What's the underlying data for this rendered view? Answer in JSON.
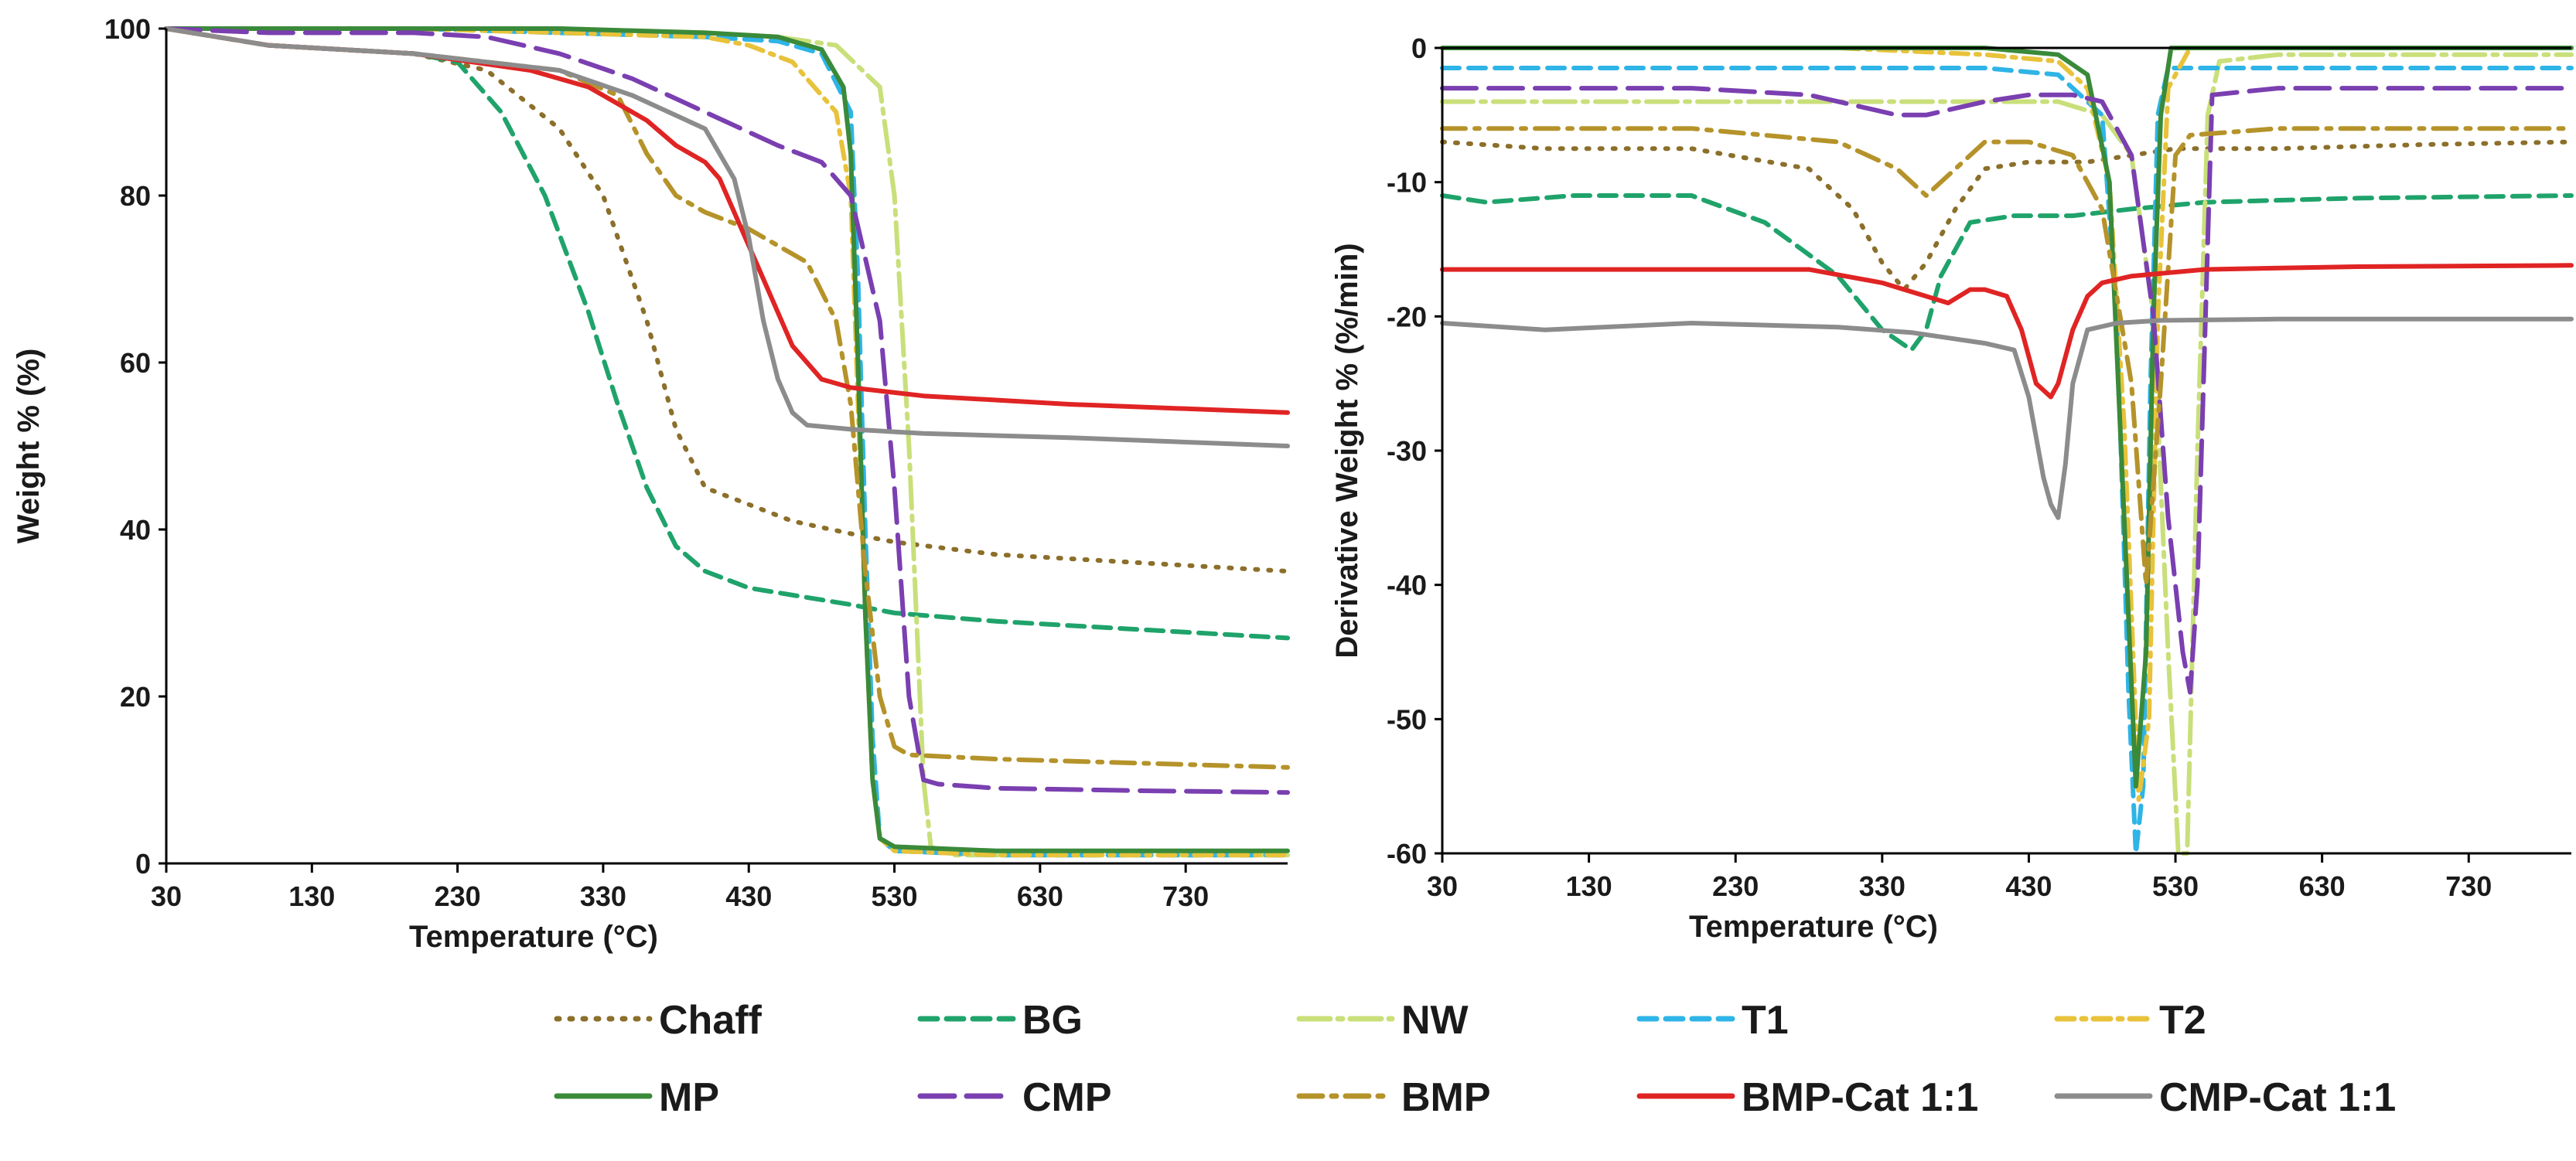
{
  "legend": [
    {
      "name": "Chaff",
      "color": "#8b6f2a",
      "dash": "3,14"
    },
    {
      "name": "BG",
      "color": "#1fa36b",
      "dash": "22,12"
    },
    {
      "name": "NW",
      "color": "#c9df7a",
      "dash": "40,10,6,10"
    },
    {
      "name": "T1",
      "color": "#2eb4e6",
      "dash": "22,12"
    },
    {
      "name": "T2",
      "color": "#e8c23a",
      "dash": "22,10,5,10"
    },
    {
      "name": "MP",
      "color": "#3a8a3a",
      "dash": ""
    },
    {
      "name": "CMP",
      "color": "#7a3fb0",
      "dash": "44,16"
    },
    {
      "name": "BMP",
      "color": "#b5932a",
      "dash": "30,12,6,12"
    },
    {
      "name": "BMP-Cat 1:1",
      "color": "#e02424",
      "dash": ""
    },
    {
      "name": "CMP-Cat 1:1",
      "color": "#8c8c8c",
      "dash": ""
    }
  ],
  "chart_data": [
    {
      "type": "line",
      "title": "",
      "xlabel": "Temperature (°C)",
      "ylabel": "Weight % (%)",
      "xlim": [
        30,
        800
      ],
      "ylim": [
        0,
        100
      ],
      "xticks": [
        30,
        130,
        230,
        330,
        430,
        530,
        630,
        730
      ],
      "yticks": [
        0,
        20,
        40,
        60,
        80,
        100
      ],
      "grid": false,
      "series": [
        {
          "name": "Chaff",
          "x": [
            30,
            100,
            200,
            250,
            300,
            330,
            360,
            380,
            400,
            430,
            460,
            500,
            530,
            600,
            700,
            800
          ],
          "y": [
            100,
            98,
            97,
            95,
            88,
            80,
            65,
            52,
            45,
            43,
            41,
            39.5,
            38.5,
            37,
            36,
            35
          ]
        },
        {
          "name": "BG",
          "x": [
            30,
            100,
            200,
            230,
            260,
            290,
            320,
            340,
            360,
            380,
            400,
            430,
            500,
            530,
            600,
            700,
            800
          ],
          "y": [
            100,
            98,
            97,
            96,
            90,
            80,
            66,
            55,
            45,
            38,
            35,
            33,
            31,
            30,
            29,
            28,
            27
          ]
        },
        {
          "name": "NW",
          "x": [
            30,
            100,
            200,
            300,
            400,
            450,
            490,
            520,
            530,
            540,
            550,
            555,
            570,
            650,
            800
          ],
          "y": [
            100,
            100,
            100,
            100,
            99.5,
            99,
            98,
            93,
            80,
            50,
            10,
            2,
            1,
            1,
            1
          ]
        },
        {
          "name": "T1",
          "x": [
            30,
            100,
            200,
            300,
            400,
            450,
            480,
            500,
            505,
            510,
            515,
            520,
            530,
            600,
            800
          ],
          "y": [
            100,
            100,
            100,
            99.5,
            99,
            98.5,
            97,
            90,
            70,
            40,
            15,
            3,
            1.5,
            1,
            1
          ]
        },
        {
          "name": "T2",
          "x": [
            30,
            100,
            200,
            300,
            400,
            430,
            460,
            490,
            500,
            505,
            510,
            515,
            520,
            530,
            600,
            800
          ],
          "y": [
            100,
            100,
            100,
            99.5,
            99,
            98,
            96,
            90,
            80,
            55,
            30,
            10,
            3,
            1.5,
            1,
            1
          ]
        },
        {
          "name": "MP",
          "x": [
            30,
            100,
            200,
            300,
            400,
            450,
            480,
            495,
            500,
            505,
            510,
            515,
            520,
            530,
            600,
            800
          ],
          "y": [
            100,
            100,
            100,
            100,
            99.5,
            99,
            97.5,
            93,
            85,
            60,
            30,
            10,
            3,
            2,
            1.5,
            1.5
          ]
        },
        {
          "name": "CMP",
          "x": [
            30,
            100,
            200,
            250,
            300,
            350,
            400,
            450,
            480,
            500,
            520,
            530,
            540,
            550,
            560,
            600,
            700,
            800
          ],
          "y": [
            100,
            99.5,
            99.5,
            99,
            97,
            94,
            90,
            86,
            84,
            80,
            65,
            45,
            20,
            10,
            9.5,
            9,
            8.7,
            8.5
          ]
        },
        {
          "name": "BMP",
          "x": [
            30,
            100,
            200,
            300,
            340,
            360,
            380,
            400,
            430,
            470,
            490,
            500,
            510,
            520,
            530,
            540,
            600,
            700,
            800
          ],
          "y": [
            100,
            98,
            97,
            95,
            92,
            85,
            80,
            78,
            76,
            72,
            65,
            55,
            35,
            20,
            14,
            13,
            12.5,
            12,
            11.5
          ]
        },
        {
          "name": "BMP-Cat 1:1",
          "x": [
            30,
            100,
            200,
            280,
            320,
            360,
            380,
            400,
            410,
            420,
            440,
            460,
            480,
            500,
            550,
            650,
            800
          ],
          "y": [
            100,
            98,
            97,
            95,
            93,
            89,
            86,
            84,
            82,
            78,
            70,
            62,
            58,
            57,
            56,
            55,
            54
          ]
        },
        {
          "name": "CMP-Cat 1:1",
          "x": [
            30,
            100,
            200,
            300,
            350,
            400,
            420,
            430,
            440,
            450,
            460,
            470,
            500,
            550,
            650,
            800
          ],
          "y": [
            100,
            98,
            97,
            95,
            92,
            88,
            82,
            75,
            65,
            58,
            54,
            52.5,
            52,
            51.5,
            51,
            50
          ]
        }
      ]
    },
    {
      "type": "line",
      "title": "",
      "xlabel": "Temperature (°C)",
      "ylabel": "Derivative Weight % (%/min)",
      "xlim": [
        30,
        800
      ],
      "ylim": [
        -60,
        0
      ],
      "xticks": [
        30,
        130,
        230,
        330,
        430,
        530,
        630,
        730
      ],
      "yticks": [
        0,
        -10,
        -20,
        -30,
        -40,
        -50,
        -60
      ],
      "grid": false,
      "series": [
        {
          "name": "Chaff",
          "x": [
            30,
            100,
            200,
            280,
            310,
            330,
            345,
            360,
            380,
            400,
            430,
            470,
            500,
            530,
            600,
            700,
            800
          ],
          "y": [
            -7,
            -7.5,
            -7.5,
            -9,
            -12,
            -16,
            -18,
            -16,
            -12,
            -9,
            -8.5,
            -8.5,
            -8,
            -7.5,
            -7.5,
            -7.2,
            -7
          ]
        },
        {
          "name": "BG",
          "x": [
            30,
            60,
            120,
            200,
            250,
            300,
            330,
            350,
            360,
            370,
            390,
            420,
            460,
            500,
            550,
            650,
            800
          ],
          "y": [
            -11,
            -11.5,
            -11,
            -11,
            -13,
            -17,
            -21,
            -22.5,
            -21,
            -17,
            -13,
            -12.5,
            -12.5,
            -12,
            -11.5,
            -11.2,
            -11
          ]
        },
        {
          "name": "NW",
          "x": [
            30,
            100,
            200,
            300,
            400,
            450,
            480,
            500,
            515,
            525,
            532,
            538,
            545,
            552,
            560,
            600,
            800
          ],
          "y": [
            -4,
            -4,
            -4,
            -4,
            -4,
            -4,
            -5,
            -8,
            -20,
            -45,
            -60,
            -60,
            -30,
            -5,
            -1,
            -0.5,
            -0.5
          ]
        },
        {
          "name": "T1",
          "x": [
            30,
            100,
            200,
            300,
            400,
            450,
            480,
            490,
            498,
            503,
            508,
            513,
            518,
            525,
            800
          ],
          "y": [
            -1.5,
            -1.5,
            -1.5,
            -1.5,
            -1.5,
            -2,
            -5,
            -20,
            -48,
            -60,
            -55,
            -25,
            -5,
            -1.5,
            -1.5
          ]
        },
        {
          "name": "T2",
          "x": [
            30,
            100,
            200,
            300,
            400,
            450,
            470,
            485,
            495,
            505,
            512,
            518,
            525,
            540,
            800
          ],
          "y": [
            0,
            0,
            0,
            0,
            -0.5,
            -1,
            -3,
            -10,
            -28,
            -56,
            -50,
            -20,
            -3,
            0,
            0
          ]
        },
        {
          "name": "MP",
          "x": [
            30,
            100,
            200,
            300,
            400,
            450,
            470,
            485,
            495,
            503,
            510,
            515,
            520,
            527,
            540,
            800
          ],
          "y": [
            0,
            0,
            0,
            0,
            0,
            -0.5,
            -2,
            -10,
            -35,
            -55,
            -45,
            -20,
            -5,
            0,
            0,
            0
          ]
        },
        {
          "name": "CMP",
          "x": [
            30,
            100,
            200,
            280,
            320,
            340,
            360,
            380,
            400,
            430,
            460,
            480,
            500,
            515,
            525,
            535,
            540,
            545,
            555,
            600,
            800
          ],
          "y": [
            -3,
            -3,
            -3,
            -3.5,
            -4.5,
            -5,
            -5,
            -4.5,
            -4,
            -3.5,
            -3.5,
            -4,
            -8,
            -20,
            -35,
            -45,
            -48,
            -40,
            -3.5,
            -3,
            -3
          ]
        },
        {
          "name": "BMP",
          "x": [
            30,
            100,
            200,
            300,
            340,
            360,
            380,
            400,
            430,
            460,
            480,
            500,
            510,
            520,
            530,
            540,
            600,
            800
          ],
          "y": [
            -6,
            -6,
            -6,
            -7,
            -9,
            -11,
            -9,
            -7,
            -7,
            -8,
            -12,
            -25,
            -40,
            -25,
            -8,
            -6.5,
            -6,
            -6
          ]
        },
        {
          "name": "BMP-Cat 1:1",
          "x": [
            30,
            100,
            200,
            280,
            330,
            360,
            375,
            390,
            400,
            415,
            425,
            435,
            445,
            450,
            460,
            470,
            480,
            500,
            550,
            650,
            800
          ],
          "y": [
            -16.5,
            -16.5,
            -16.5,
            -16.5,
            -17.5,
            -18.5,
            -19,
            -18,
            -18,
            -18.5,
            -21,
            -25,
            -26,
            -25,
            -21,
            -18.5,
            -17.5,
            -17,
            -16.5,
            -16.3,
            -16.2
          ]
        },
        {
          "name": "CMP-Cat 1:1",
          "x": [
            30,
            100,
            200,
            300,
            350,
            400,
            420,
            430,
            440,
            445,
            450,
            455,
            460,
            470,
            490,
            520,
            600,
            800
          ],
          "y": [
            -20.5,
            -21,
            -20.5,
            -20.8,
            -21.2,
            -22,
            -22.5,
            -26,
            -32,
            -34,
            -35,
            -31,
            -25,
            -21,
            -20.5,
            -20.3,
            -20.2,
            -20.2
          ]
        }
      ]
    }
  ]
}
